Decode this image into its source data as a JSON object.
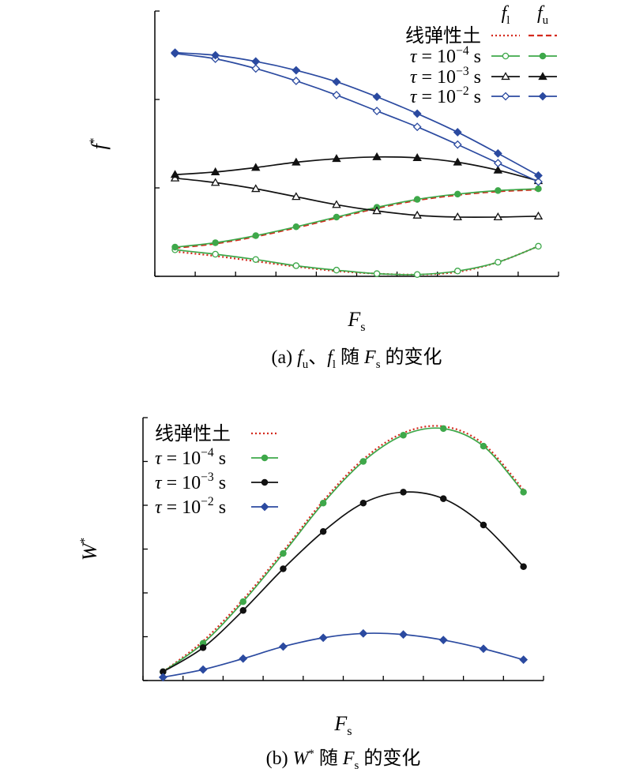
{
  "chart_data": [
    {
      "type": "line",
      "caption": "(a) fu、fl 随 Fs 的变化",
      "xlabel": "Fs",
      "ylabel": "f*",
      "xlim": [
        0,
        1.0
      ],
      "ylim": [
        0.6,
        0.9
      ],
      "xticks": [
        "0",
        "0.1",
        "0.2",
        "0.3",
        "0.4",
        "0.5",
        "0.6",
        "0.7",
        "0.8",
        "0.9",
        "1.0"
      ],
      "yticks": [
        "0.6",
        "0.7",
        "0.8",
        "0.9"
      ],
      "legend_position": "top-right",
      "legend_headers": [
        "fl",
        "fu"
      ],
      "x": [
        0.05,
        0.15,
        0.25,
        0.35,
        0.45,
        0.55,
        0.65,
        0.75,
        0.85,
        0.95
      ],
      "series": [
        {
          "name": "线弹性土",
          "bound": "fl",
          "color": "#d42a1e",
          "style": "dotted",
          "marker": "none",
          "values": [
            0.628,
            0.623,
            0.617,
            0.611,
            0.606,
            0.603,
            0.602,
            0.605,
            0.616,
            0.634
          ]
        },
        {
          "name": "线弹性土",
          "bound": "fu",
          "color": "#d42a1e",
          "style": "dashed",
          "marker": "none",
          "values": [
            0.632,
            0.637,
            0.645,
            0.655,
            0.666,
            0.677,
            0.686,
            0.692,
            0.696,
            0.698
          ]
        },
        {
          "name": "τ = 10−4 s",
          "bound": "fl",
          "color": "#3ea84a",
          "style": "solid",
          "marker": "circle-open",
          "values": [
            0.63,
            0.625,
            0.619,
            0.612,
            0.607,
            0.603,
            0.602,
            0.606,
            0.616,
            0.634
          ]
        },
        {
          "name": "τ = 10−4 s",
          "bound": "fu",
          "color": "#3ea84a",
          "style": "solid",
          "marker": "circle-filled",
          "values": [
            0.633,
            0.638,
            0.646,
            0.656,
            0.667,
            0.678,
            0.687,
            0.693,
            0.697,
            0.699
          ]
        },
        {
          "name": "τ = 10−3 s",
          "bound": "fl",
          "color": "#111111",
          "style": "solid",
          "marker": "triangle-open",
          "values": [
            0.711,
            0.706,
            0.699,
            0.69,
            0.681,
            0.674,
            0.669,
            0.667,
            0.667,
            0.668
          ]
        },
        {
          "name": "τ = 10−3 s",
          "bound": "fu",
          "color": "#111111",
          "style": "solid",
          "marker": "triangle-filled",
          "values": [
            0.715,
            0.718,
            0.723,
            0.729,
            0.733,
            0.735,
            0.734,
            0.729,
            0.72,
            0.708
          ]
        },
        {
          "name": "τ = 10−2 s",
          "bound": "fl",
          "color": "#2b4aa0",
          "style": "solid",
          "marker": "diamond-open",
          "values": [
            0.852,
            0.846,
            0.835,
            0.821,
            0.805,
            0.787,
            0.769,
            0.749,
            0.728,
            0.707
          ]
        },
        {
          "name": "τ = 10−2 s",
          "bound": "fu",
          "color": "#2b4aa0",
          "style": "solid",
          "marker": "diamond-filled",
          "values": [
            0.853,
            0.85,
            0.843,
            0.833,
            0.82,
            0.803,
            0.784,
            0.763,
            0.739,
            0.714
          ]
        }
      ]
    },
    {
      "type": "line",
      "caption": "(b) W* 随 Fs 的变化",
      "xlabel": "Fs",
      "ylabel": "W*",
      "xlim": [
        0,
        1.0
      ],
      "ylim": [
        0,
        0.12
      ],
      "xticks": [
        "0",
        "0.1",
        "0.2",
        "0.3",
        "0.4",
        "0.5",
        "0.6",
        "0.7",
        "0.8",
        "0.9",
        "1.0"
      ],
      "yticks": [
        "0",
        "0.02",
        "0.04",
        "0.06",
        "0.08",
        "0.10",
        "0.12"
      ],
      "legend_position": "top-left",
      "x": [
        0.05,
        0.15,
        0.25,
        0.35,
        0.45,
        0.55,
        0.65,
        0.75,
        0.85,
        0.95
      ],
      "series": [
        {
          "name": "线弹性土",
          "color": "#d42a1e",
          "style": "dotted",
          "marker": "none",
          "values": [
            0.004,
            0.018,
            0.037,
            0.059,
            0.082,
            0.101,
            0.113,
            0.116,
            0.108,
            0.087
          ]
        },
        {
          "name": "τ = 10−4 s",
          "color": "#3ea84a",
          "style": "solid",
          "marker": "circle-filled",
          "values": [
            0.004,
            0.017,
            0.036,
            0.058,
            0.081,
            0.1,
            0.112,
            0.115,
            0.107,
            0.086
          ]
        },
        {
          "name": "τ = 10−3 s",
          "color": "#111111",
          "style": "solid",
          "marker": "circle-filled",
          "values": [
            0.004,
            0.015,
            0.032,
            0.051,
            0.068,
            0.081,
            0.086,
            0.083,
            0.071,
            0.052
          ]
        },
        {
          "name": "τ = 10−2 s",
          "color": "#2b4aa0",
          "style": "solid",
          "marker": "diamond-filled",
          "values": [
            0.0015,
            0.005,
            0.01,
            0.0155,
            0.0195,
            0.0215,
            0.021,
            0.0185,
            0.0145,
            0.0095
          ]
        }
      ]
    }
  ]
}
